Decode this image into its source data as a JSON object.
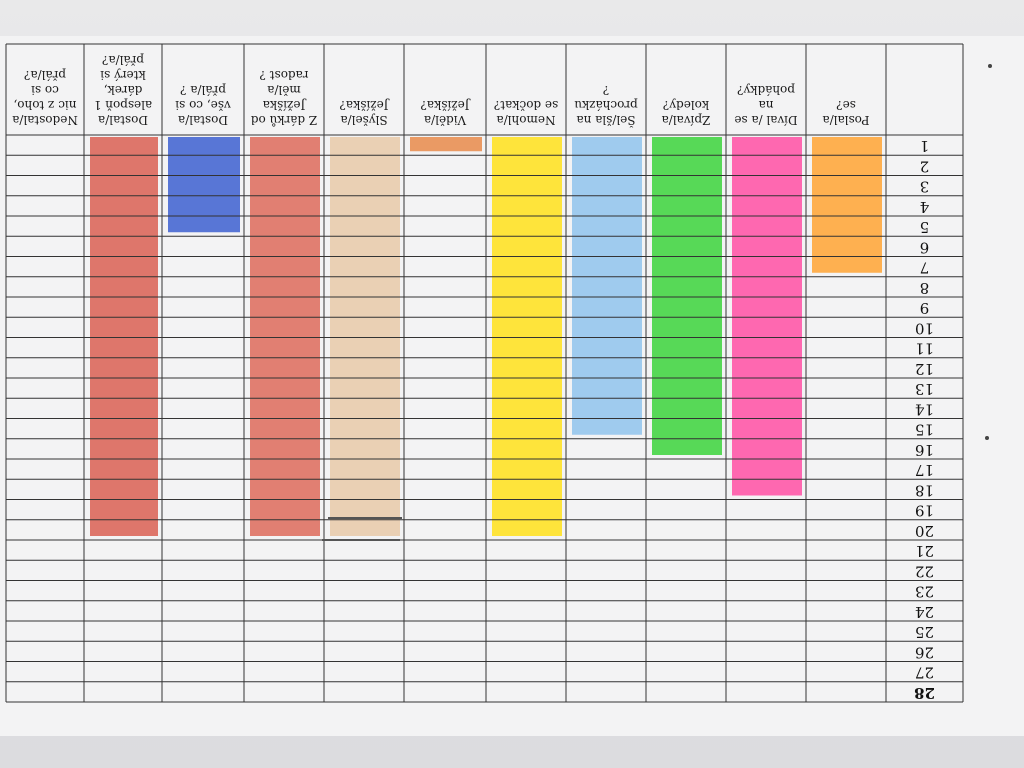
{
  "sheet": {
    "orientation": "rotated 180 degrees",
    "row_numbers": [
      "1",
      "2",
      "3",
      "4",
      "5",
      "6",
      "7",
      "8",
      "9",
      "10",
      "11",
      "12",
      "13",
      "14",
      "15",
      "16",
      "17",
      "18",
      "19",
      "20",
      "21",
      "22",
      "23",
      "24",
      "25",
      "26",
      "27",
      "28"
    ],
    "columns": [
      {
        "id": "c1",
        "label_lines": [
          "Poslal/a",
          "se?"
        ],
        "color": "#ffa333",
        "filled_to": 7
      },
      {
        "id": "c2",
        "label_lines": [
          "Díval /a se",
          "na",
          "pohádky?"
        ],
        "color": "#ff4fa3",
        "filled_to": 18
      },
      {
        "id": "c3",
        "label_lines": [
          "Zpíval/a",
          "koledy?"
        ],
        "color": "#3bd43b",
        "filled_to": 16
      },
      {
        "id": "c4",
        "label_lines": [
          "Šel/šla na",
          "procházku",
          "?"
        ],
        "color": "#8fc3ec",
        "filled_to": 15
      },
      {
        "id": "c5",
        "label_lines": [
          "Nemohl/a",
          "se dočkat?"
        ],
        "color": "#ffe01a",
        "filled_to": 20
      },
      {
        "id": "c6",
        "label_lines": [
          "Viděl/a",
          "Ježíška?"
        ],
        "color": "#e88a4a",
        "filled_to": 1
      },
      {
        "id": "c7",
        "label_lines": [
          "Slyšel/a",
          "Ježíška?"
        ],
        "color": "#e8c9a8",
        "filled_to": 20
      },
      {
        "id": "c8",
        "label_lines": [
          "Z dárků od",
          "Ježíška",
          "měl/a",
          "radost ?"
        ],
        "color": "#dd6a5a",
        "filled_to": 20
      },
      {
        "id": "c9",
        "label_lines": [
          "Dostal/a",
          "vše, co si",
          "přál/a ?"
        ],
        "color": "#3c5fd0",
        "filled_to": 5
      },
      {
        "id": "c10",
        "label_lines": [
          "Dostal/a",
          "alespoň 1",
          "dárek,",
          "který si",
          "přál/a?"
        ],
        "color": "#d95f52",
        "filled_to": 20
      },
      {
        "id": "c11",
        "label_lines": [
          "Nedostal/a",
          "nic z toho,",
          "co si",
          "přál/a?"
        ],
        "color": "#e6e6e6",
        "filled_to": 0
      }
    ]
  }
}
